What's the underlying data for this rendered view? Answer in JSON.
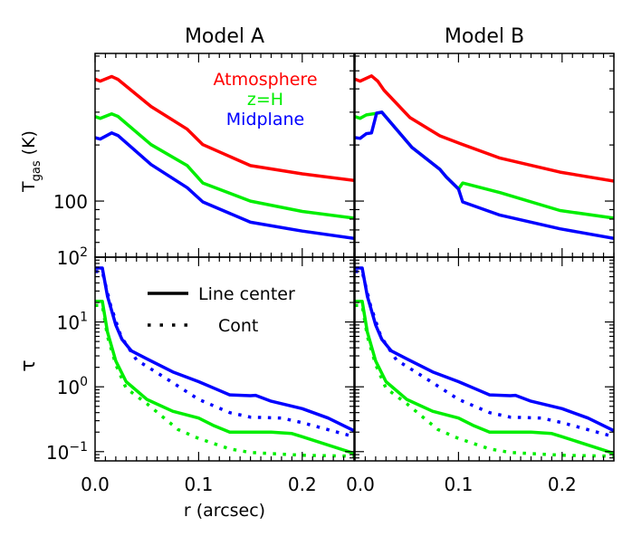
{
  "chart_data": {
    "type": "line",
    "layout": "2x2 grid",
    "column_titles": [
      "Model A",
      "Model B"
    ],
    "xlabel": "r (arcsec)",
    "xlim": [
      0,
      0.25
    ],
    "xticks": [
      "0.0",
      "0.1",
      "0.2"
    ],
    "rows": [
      {
        "ylabel_main": "T",
        "ylabel_sub": "gas",
        "ylabel_unit": " (K)",
        "yscale": "log",
        "ylim": [
          50,
          620
        ],
        "yticks": [
          {
            "value": 100,
            "label": "100"
          }
        ],
        "legend": {
          "placement": "top-right",
          "entries": [
            {
              "label": "Atmosphere",
              "color": "#ff0000"
            },
            {
              "label": "z=H",
              "color": "#00ee00"
            },
            {
              "label": "Midplane",
              "color": "#0000ff"
            }
          ]
        }
      },
      {
        "ylabel_main": "τ",
        "yscale": "log",
        "ylim": [
          0.072,
          100
        ],
        "yticks": [
          {
            "value": 100,
            "base": "10",
            "exp": "2"
          },
          {
            "value": 10,
            "base": "10",
            "exp": "1"
          },
          {
            "value": 1,
            "base": "10",
            "exp": "0"
          },
          {
            "value": 0.1,
            "base": "10",
            "exp": "−1"
          }
        ],
        "legend": {
          "placement": "top-center",
          "entries": [
            {
              "label": "Line center",
              "style": "solid"
            },
            {
              "label": "Cont",
              "style": "dotted"
            }
          ]
        }
      }
    ],
    "panels": [
      {
        "model": "Model A",
        "row": 0,
        "series": [
          {
            "name": "Atmosphere",
            "color": "#ff0000",
            "style": "solid",
            "points": [
              [
                0,
                451
              ],
              [
                0.005,
                440
              ],
              [
                0.016,
                466
              ],
              [
                0.022,
                450
              ],
              [
                0.054,
                322
              ],
              [
                0.089,
                243
              ],
              [
                0.104,
                201
              ],
              [
                0.15,
                155
              ],
              [
                0.2,
                140
              ],
              [
                0.25,
                129
              ]
            ]
          },
          {
            "name": "z=H",
            "color": "#00ee00",
            "style": "solid",
            "points": [
              [
                0,
                284
              ],
              [
                0.005,
                278
              ],
              [
                0.016,
                294
              ],
              [
                0.022,
                285
              ],
              [
                0.054,
                201
              ],
              [
                0.089,
                155
              ],
              [
                0.104,
                125
              ],
              [
                0.15,
                100
              ],
              [
                0.2,
                88
              ],
              [
                0.25,
                81
              ]
            ]
          },
          {
            "name": "Midplane",
            "color": "#0000ff",
            "style": "solid",
            "points": [
              [
                0,
                219
              ],
              [
                0.005,
                215
              ],
              [
                0.016,
                232
              ],
              [
                0.022,
                225
              ],
              [
                0.054,
                157
              ],
              [
                0.089,
                118
              ],
              [
                0.104,
                99
              ],
              [
                0.15,
                77
              ],
              [
                0.2,
                69
              ],
              [
                0.25,
                63
              ]
            ]
          }
        ]
      },
      {
        "model": "Model B",
        "row": 0,
        "series": [
          {
            "name": "Atmosphere",
            "color": "#ff0000",
            "style": "solid",
            "points": [
              [
                0,
                451
              ],
              [
                0.005,
                440
              ],
              [
                0.016,
                470
              ],
              [
                0.022,
                440
              ],
              [
                0.028,
                394
              ],
              [
                0.053,
                281
              ],
              [
                0.082,
                224
              ],
              [
                0.1,
                205
              ],
              [
                0.14,
                170
              ],
              [
                0.198,
                143
              ],
              [
                0.25,
                128
              ]
            ]
          },
          {
            "name": "z=H",
            "color": "#00ee00",
            "style": "solid",
            "points": [
              [
                0,
                284
              ],
              [
                0.005,
                278
              ],
              [
                0.011,
                290
              ],
              [
                0.023,
                297
              ],
              [
                0.026,
                300
              ],
              [
                0.055,
                194
              ],
              [
                0.082,
                148
              ],
              [
                0.088,
                135
              ],
              [
                0.1,
                116
              ],
              [
                0.104,
                125
              ],
              [
                0.14,
                111
              ],
              [
                0.198,
                89
              ],
              [
                0.25,
                81
              ]
            ]
          },
          {
            "name": "Midplane",
            "color": "#0000ff",
            "style": "solid",
            "points": [
              [
                0,
                219
              ],
              [
                0.005,
                217
              ],
              [
                0.011,
                230
              ],
              [
                0.016,
                232
              ],
              [
                0.021,
                297
              ],
              [
                0.026,
                300
              ],
              [
                0.055,
                194
              ],
              [
                0.082,
                148
              ],
              [
                0.088,
                135
              ],
              [
                0.1,
                116
              ],
              [
                0.104,
                99
              ],
              [
                0.14,
                84
              ],
              [
                0.198,
                71
              ],
              [
                0.25,
                63
              ]
            ]
          }
        ]
      },
      {
        "model": "Model A",
        "row": 1,
        "series": [
          {
            "color": "#0000ff",
            "style": "solid",
            "points": [
              [
                0,
                68
              ],
              [
                0.007,
                68
              ],
              [
                0.012,
                25
              ],
              [
                0.02,
                9
              ],
              [
                0.026,
                5.4
              ],
              [
                0.035,
                3.6
              ],
              [
                0.05,
                2.7
              ],
              [
                0.075,
                1.7
              ],
              [
                0.1,
                1.2
              ],
              [
                0.115,
                0.95
              ],
              [
                0.13,
                0.75
              ],
              [
                0.15,
                0.73
              ],
              [
                0.155,
                0.74
              ],
              [
                0.17,
                0.6
              ],
              [
                0.2,
                0.46
              ],
              [
                0.225,
                0.33
              ],
              [
                0.25,
                0.21
              ]
            ]
          },
          {
            "color": "#0000ff",
            "style": "dotted",
            "points": [
              [
                0,
                60
              ],
              [
                0.007,
                60
              ],
              [
                0.015,
                18
              ],
              [
                0.025,
                6
              ],
              [
                0.04,
                2.6
              ],
              [
                0.07,
                1.3
              ],
              [
                0.1,
                0.64
              ],
              [
                0.13,
                0.4
              ],
              [
                0.15,
                0.34
              ],
              [
                0.18,
                0.33
              ],
              [
                0.2,
                0.28
              ],
              [
                0.25,
                0.17
              ]
            ]
          },
          {
            "color": "#00ee00",
            "style": "solid",
            "points": [
              [
                0,
                20.9
              ],
              [
                0.007,
                20.9
              ],
              [
                0.012,
                7
              ],
              [
                0.02,
                2.5
              ],
              [
                0.03,
                1.2
              ],
              [
                0.05,
                0.64
              ],
              [
                0.075,
                0.42
              ],
              [
                0.1,
                0.33
              ],
              [
                0.115,
                0.25
              ],
              [
                0.13,
                0.2
              ],
              [
                0.17,
                0.2
              ],
              [
                0.19,
                0.19
              ],
              [
                0.2,
                0.17
              ],
              [
                0.25,
                0.094
              ]
            ]
          },
          {
            "color": "#00ee00",
            "style": "dotted",
            "points": [
              [
                0,
                18
              ],
              [
                0.007,
                18
              ],
              [
                0.012,
                6
              ],
              [
                0.02,
                2.2
              ],
              [
                0.03,
                0.95
              ],
              [
                0.05,
                0.55
              ],
              [
                0.08,
                0.22
              ],
              [
                0.1,
                0.16
              ],
              [
                0.13,
                0.11
              ],
              [
                0.15,
                0.097
              ],
              [
                0.2,
                0.088
              ],
              [
                0.25,
                0.085
              ]
            ]
          }
        ]
      },
      {
        "model": "Model B",
        "row": 1,
        "series": [
          {
            "color": "#0000ff",
            "style": "solid",
            "points": [
              [
                0,
                68
              ],
              [
                0.007,
                68
              ],
              [
                0.012,
                25
              ],
              [
                0.02,
                9
              ],
              [
                0.026,
                5.4
              ],
              [
                0.035,
                3.6
              ],
              [
                0.05,
                2.7
              ],
              [
                0.075,
                1.7
              ],
              [
                0.1,
                1.2
              ],
              [
                0.115,
                0.95
              ],
              [
                0.13,
                0.75
              ],
              [
                0.15,
                0.73
              ],
              [
                0.155,
                0.74
              ],
              [
                0.17,
                0.6
              ],
              [
                0.2,
                0.46
              ],
              [
                0.225,
                0.33
              ],
              [
                0.25,
                0.21
              ]
            ]
          },
          {
            "color": "#0000ff",
            "style": "dotted",
            "points": [
              [
                0,
                60
              ],
              [
                0.007,
                60
              ],
              [
                0.015,
                18
              ],
              [
                0.025,
                6
              ],
              [
                0.04,
                2.6
              ],
              [
                0.07,
                1.3
              ],
              [
                0.1,
                0.64
              ],
              [
                0.13,
                0.4
              ],
              [
                0.15,
                0.34
              ],
              [
                0.18,
                0.33
              ],
              [
                0.2,
                0.28
              ],
              [
                0.25,
                0.17
              ]
            ]
          },
          {
            "color": "#00ee00",
            "style": "solid",
            "points": [
              [
                0,
                20.9
              ],
              [
                0.007,
                20.9
              ],
              [
                0.012,
                7
              ],
              [
                0.02,
                2.5
              ],
              [
                0.03,
                1.2
              ],
              [
                0.05,
                0.64
              ],
              [
                0.075,
                0.42
              ],
              [
                0.1,
                0.33
              ],
              [
                0.115,
                0.25
              ],
              [
                0.13,
                0.2
              ],
              [
                0.17,
                0.2
              ],
              [
                0.19,
                0.19
              ],
              [
                0.2,
                0.17
              ],
              [
                0.25,
                0.094
              ]
            ]
          },
          {
            "color": "#00ee00",
            "style": "dotted",
            "points": [
              [
                0,
                18
              ],
              [
                0.007,
                18
              ],
              [
                0.012,
                6
              ],
              [
                0.02,
                2.2
              ],
              [
                0.03,
                0.95
              ],
              [
                0.05,
                0.55
              ],
              [
                0.08,
                0.22
              ],
              [
                0.1,
                0.16
              ],
              [
                0.13,
                0.11
              ],
              [
                0.15,
                0.097
              ],
              [
                0.2,
                0.088
              ],
              [
                0.25,
                0.085
              ]
            ]
          }
        ]
      }
    ]
  }
}
